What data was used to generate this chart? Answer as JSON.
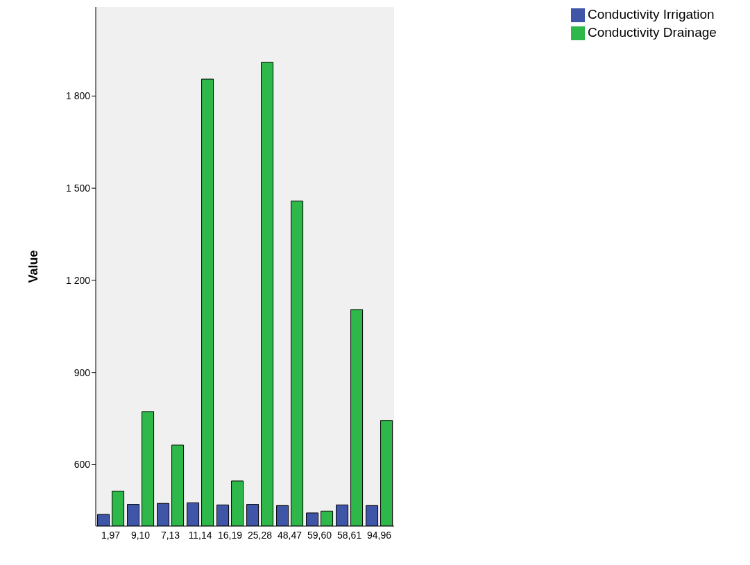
{
  "chart_data": {
    "type": "bar",
    "ylabel": "Value",
    "categories": [
      "1,97",
      "9,10",
      "7,13",
      "11,14",
      "16,19",
      "25,28",
      "48,47",
      "59,60",
      "58,61",
      "94,96"
    ],
    "series": [
      {
        "name": "Conductivity Irrigation",
        "color": "#3f55a8",
        "values": [
          438,
          471,
          474,
          476,
          469,
          471,
          467,
          443,
          469,
          467
        ]
      },
      {
        "name": "Conductivity Drainage",
        "color": "#2fb84a",
        "values": [
          514,
          773,
          664,
          1855,
          547,
          1910,
          1458,
          449,
          1105,
          744
        ]
      }
    ],
    "ylim": [
      400,
      2090
    ],
    "yticks": [
      600,
      900,
      {
        "value": 1200,
        "label": "1 200"
      },
      {
        "value": 1500,
        "label": "1 500"
      },
      {
        "value": 1800,
        "label": "1 800"
      }
    ],
    "grid": false,
    "legend": "top right"
  }
}
